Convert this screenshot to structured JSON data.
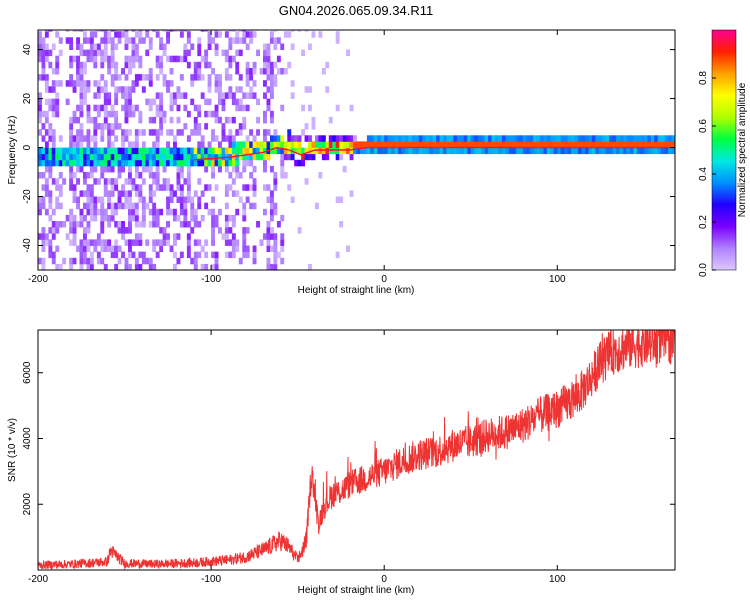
{
  "title": "GN04.2026.065.09.34.R11",
  "colors": {
    "snr_line": "#ee3333",
    "ridge": "#ff1030",
    "colormap_stops": [
      "#dcc8ff",
      "#b080ff",
      "#7a00ff",
      "#2000ff",
      "#0090ff",
      "#00e8e0",
      "#00ff40",
      "#b0ff00",
      "#ffff00",
      "#ffa000",
      "#ff2000",
      "#ff0090"
    ]
  },
  "chart_data": [
    {
      "type": "heatmap",
      "title": "GN04.2026.065.09.34.R11",
      "xlabel": "Height of straight line (km)",
      "ylabel": "Frequency (Hz)",
      "xlim": [
        -200,
        168
      ],
      "ylim": [
        -50,
        48
      ],
      "x_ticks": [
        -200,
        -100,
        0,
        100
      ],
      "y_ticks": [
        -40,
        -20,
        0,
        20,
        40
      ],
      "grid": false,
      "ridge": {
        "x": [
          -110,
          -100,
          -90,
          -80,
          -70,
          -62,
          -55,
          -48,
          -40,
          -30,
          -20,
          -10,
          0,
          50,
          100,
          168
        ],
        "y": [
          -5,
          -4.5,
          -4,
          -3,
          -2,
          0,
          -1,
          -3,
          -1,
          -1,
          -1,
          0,
          0,
          0,
          0,
          0
        ]
      },
      "colorbar": {
        "label": "Normalized spectral amplitude",
        "range": [
          0,
          1
        ],
        "ticks": [
          0.0,
          0.2,
          0.4,
          0.6,
          0.8
        ]
      }
    },
    {
      "type": "line",
      "xlabel": "Height of straight line (km)",
      "ylabel": "SNR (10 * v/v)",
      "xlim": [
        -200,
        168
      ],
      "ylim": [
        0,
        7300
      ],
      "x_ticks": [
        -200,
        -100,
        0,
        100
      ],
      "y_ticks": [
        2000,
        4000,
        6000
      ],
      "grid": false,
      "series": [
        {
          "x": [
            -200,
            -180,
            -160,
            -158,
            -150,
            -130,
            -110,
            -90,
            -80,
            -70,
            -60,
            -55,
            -50,
            -45,
            -42,
            -38,
            -35,
            -30,
            -25,
            -20,
            -10,
            0,
            10,
            20,
            30,
            40,
            50,
            60,
            70,
            80,
            90,
            100,
            110,
            115,
            120,
            125,
            130,
            140,
            150,
            160,
            168
          ],
          "values": [
            150,
            180,
            250,
            600,
            200,
            180,
            220,
            300,
            400,
            600,
            900,
            700,
            300,
            900,
            3000,
            1400,
            1900,
            2300,
            2400,
            2600,
            2800,
            3000,
            3300,
            3500,
            3600,
            3800,
            3900,
            4100,
            4200,
            4400,
            4700,
            4900,
            5200,
            5500,
            5900,
            6300,
            6600,
            6800,
            6900,
            7000,
            7000
          ]
        }
      ]
    }
  ]
}
